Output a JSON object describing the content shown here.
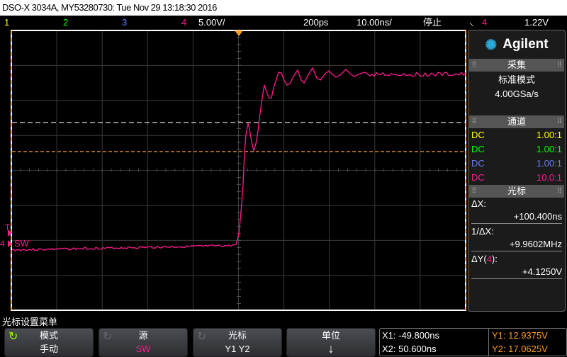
{
  "title": "DSO-X 3034A, MY53280730: Tue Nov 29 13:18:30 2016",
  "status": {
    "channels": [
      {
        "label": "1",
        "color": "#ffff00"
      },
      {
        "label": "2",
        "color": "#00ff00"
      },
      {
        "label": "3",
        "color": "#6a7cff"
      },
      {
        "label": "4",
        "color": "#ff1a8c"
      }
    ],
    "ch4_scale": "5.00V/",
    "time_delay": "200ps",
    "time_scale": "10.00ns/",
    "run_state": "停止",
    "trigger_icon": "rising-edge-icon",
    "trigger_source": "4",
    "trigger_level": "1.22V"
  },
  "screen": {
    "channel_marker": "4",
    "channel_label": "SW",
    "trigger_marker": "T",
    "trace_color": "#ff1a8c",
    "cursor_color": "#ffa040"
  },
  "panel": {
    "brand": "Agilent",
    "acquisition": {
      "header": "采集",
      "mode": "标准模式",
      "rate": "4.00GSa/s"
    },
    "channels": {
      "header": "通道",
      "rows": [
        {
          "coupling": "DC",
          "probe": "1.00:1",
          "color": "#ffff00"
        },
        {
          "coupling": "DC",
          "probe": "1.00:1",
          "color": "#00ff00"
        },
        {
          "coupling": "DC",
          "probe": "1.00:1",
          "color": "#6a7cff"
        },
        {
          "coupling": "DC",
          "probe": "10.0:1",
          "color": "#ff1a8c"
        }
      ]
    },
    "cursors": {
      "header": "光标",
      "dx_label": "ΔX:",
      "dx": "+100.400ns",
      "inv_dx_label": "1/ΔX:",
      "inv_dx": "+9.9602MHz",
      "dy_label_pre": "ΔY(",
      "dy_source": "4",
      "dy_label_post": "):",
      "dy": "+4.1250V"
    }
  },
  "menu": {
    "title": "光标设置菜单",
    "softkeys": [
      {
        "label": "模式",
        "value": "手动"
      },
      {
        "label": "源",
        "value": "SW"
      },
      {
        "label": "光标",
        "value": "Y1 Y2"
      },
      {
        "label": "单位",
        "value": "↓"
      }
    ],
    "readout": {
      "x1": "X1: -49.800ns",
      "x2": "X2: 50.600ns",
      "y1": "Y1: 12.9375V",
      "y2": "Y2: 17.0625V"
    }
  }
}
